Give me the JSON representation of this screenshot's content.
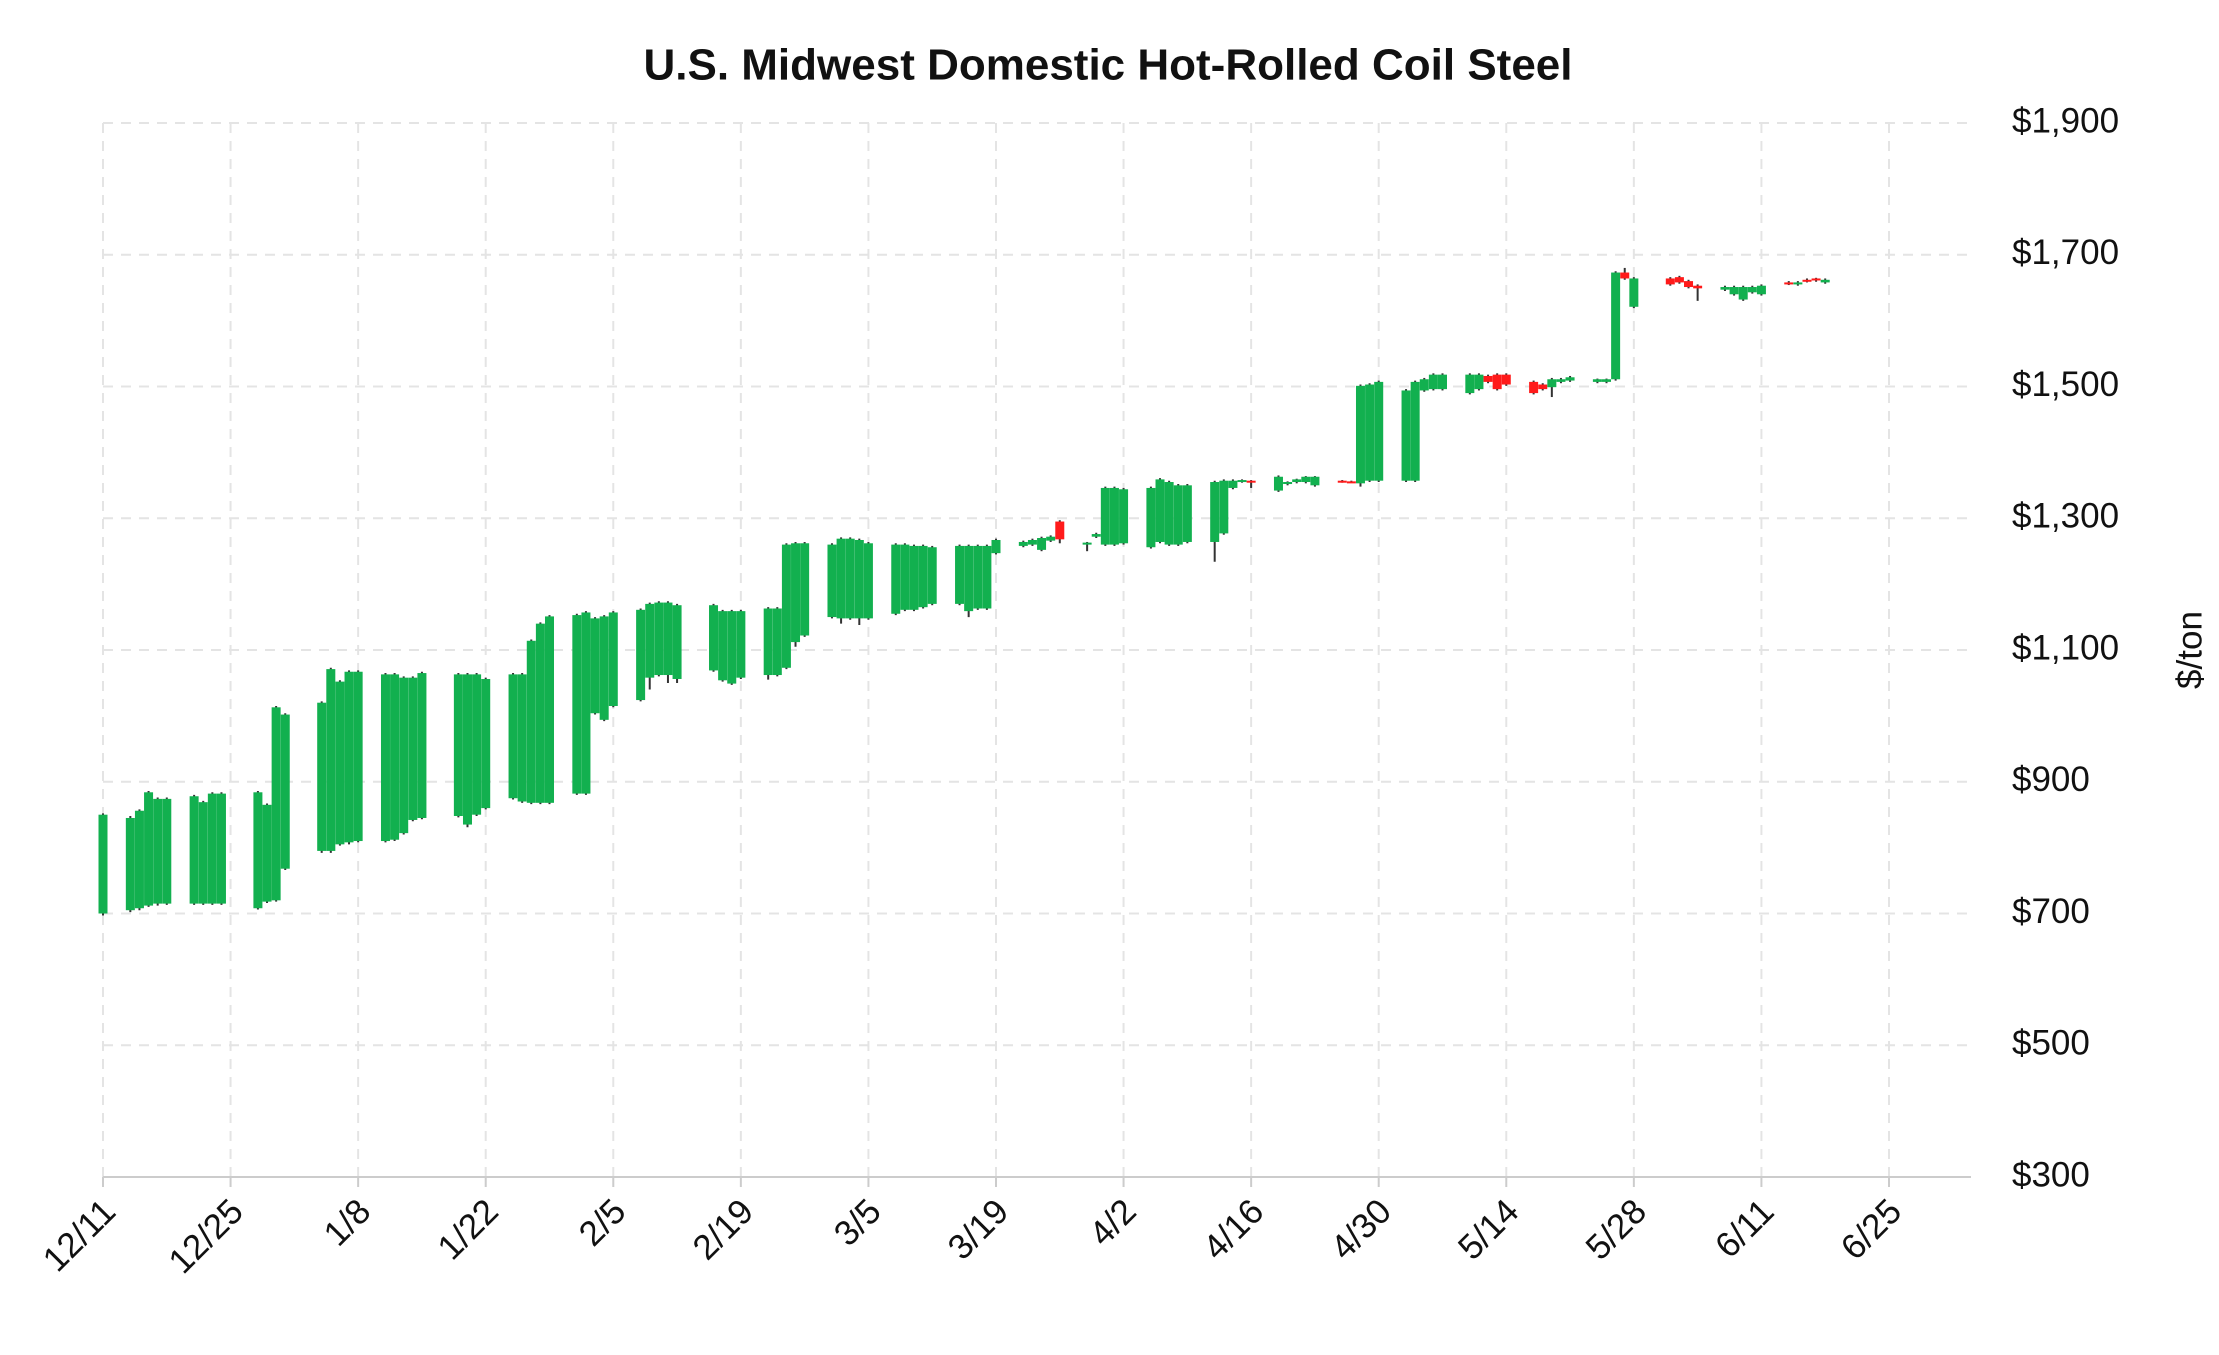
{
  "chart_data": {
    "type": "candlestick",
    "title": "U.S. Midwest Domestic Hot-Rolled Coil Steel",
    "y_label": "$/ton",
    "grid": true,
    "up_color": "#12b04f",
    "down_color": "#ff1a1a",
    "wick_color": "#333333",
    "xlim": [
      "12/11",
      "7/4"
    ],
    "xticks": [
      "12/11",
      "12/25",
      "1/8",
      "1/22",
      "2/5",
      "2/19",
      "3/5",
      "3/19",
      "4/2",
      "4/16",
      "4/30",
      "5/14",
      "5/28",
      "6/11",
      "6/25"
    ],
    "ylim": [
      300,
      1900
    ],
    "yticks": [
      {
        "value": 300,
        "label": "$300"
      },
      {
        "value": 500,
        "label": "$500"
      },
      {
        "value": 700,
        "label": "$700"
      },
      {
        "value": 900,
        "label": "$900"
      },
      {
        "value": 1100,
        "label": "$1,100"
      },
      {
        "value": 1300,
        "label": "$1,300"
      },
      {
        "value": 1500,
        "label": "$1,500"
      },
      {
        "value": 1700,
        "label": "$1,700"
      },
      {
        "value": 1900,
        "label": "$1,900"
      }
    ],
    "x": [
      "12/11",
      "12/14",
      "12/15",
      "12/16",
      "12/17",
      "12/18",
      "12/21",
      "12/22",
      "12/23",
      "12/24",
      "12/28",
      "12/29",
      "12/30",
      "12/31",
      "1/4",
      "1/5",
      "1/6",
      "1/7",
      "1/8",
      "1/11",
      "1/12",
      "1/13",
      "1/14",
      "1/15",
      "1/19",
      "1/20",
      "1/21",
      "1/22",
      "1/25",
      "1/26",
      "1/27",
      "1/28",
      "1/29",
      "2/1",
      "2/2",
      "2/3",
      "2/4",
      "2/5",
      "2/8",
      "2/9",
      "2/10",
      "2/11",
      "2/12",
      "2/16",
      "2/17",
      "2/18",
      "2/19",
      "2/22",
      "2/23",
      "2/24",
      "2/25",
      "2/26",
      "3/1",
      "3/2",
      "3/3",
      "3/4",
      "3/5",
      "3/8",
      "3/9",
      "3/10",
      "3/11",
      "3/12",
      "3/15",
      "3/16",
      "3/17",
      "3/18",
      "3/19",
      "3/22",
      "3/23",
      "3/24",
      "3/25",
      "3/26",
      "3/29",
      "3/30",
      "3/31",
      "4/1",
      "4/2",
      "4/5",
      "4/6",
      "4/7",
      "4/8",
      "4/9",
      "4/12",
      "4/13",
      "4/14",
      "4/15",
      "4/16",
      "4/19",
      "4/20",
      "4/21",
      "4/22",
      "4/23",
      "4/26",
      "4/27",
      "4/28",
      "4/29",
      "4/30",
      "5/3",
      "5/4",
      "5/5",
      "5/6",
      "5/7",
      "5/10",
      "5/11",
      "5/12",
      "5/13",
      "5/14",
      "5/17",
      "5/18",
      "5/19",
      "5/20",
      "5/21",
      "5/24",
      "5/25",
      "5/26",
      "5/27",
      "5/28",
      "6/1",
      "6/2",
      "6/3",
      "6/4",
      "6/7",
      "6/8",
      "6/9",
      "6/10",
      "6/11",
      "6/14",
      "6/15",
      "6/16",
      "6/17",
      "6/18"
    ],
    "open": [
      700,
      705,
      708,
      712,
      715,
      715,
      715,
      715,
      715,
      715,
      708,
      718,
      720,
      768,
      795,
      795,
      805,
      808,
      810,
      810,
      812,
      822,
      842,
      845,
      848,
      835,
      850,
      860,
      875,
      870,
      868,
      868,
      868,
      882,
      882,
      1004,
      994,
      1015,
      1024,
      1058,
      1062,
      1062,
      1056,
      1069,
      1054,
      1049,
      1058,
      1062,
      1062,
      1073,
      1112,
      1122,
      1150,
      1148,
      1148,
      1148,
      1148,
      1155,
      1161,
      1161,
      1165,
      1170,
      1170,
      1159,
      1163,
      1163,
      1247,
      1258,
      1260,
      1252,
      1266,
      1295,
      1262,
      1272,
      1260,
      1260,
      1262,
      1256,
      1264,
      1260,
      1260,
      1264,
      1264,
      1277,
      1346,
      1356,
      1357,
      1342,
      1352,
      1355,
      1355,
      1350,
      1357,
      1356,
      1353,
      1357,
      1357,
      1357,
      1357,
      1494,
      1496,
      1496,
      1490,
      1496,
      1516,
      1518,
      1518,
      1507,
      1503,
      1499,
      1507,
      1509,
      1507,
      1507,
      1511,
      1673,
      1621,
      1664,
      1666,
      1660,
      1653,
      1647,
      1640,
      1632,
      1643,
      1640,
      1658,
      1655,
      1662,
      1664,
      1658
    ],
    "high": [
      852,
      848,
      858,
      886,
      876,
      876,
      880,
      871,
      884,
      884,
      886,
      867,
      1015,
      1004,
      1022,
      1073,
      1054,
      1069,
      1069,
      1065,
      1065,
      1060,
      1060,
      1067,
      1065,
      1065,
      1065,
      1058,
      1065,
      1065,
      1116,
      1142,
      1153,
      1155,
      1159,
      1150,
      1153,
      1159,
      1163,
      1172,
      1174,
      1174,
      1170,
      1170,
      1161,
      1161,
      1161,
      1165,
      1165,
      1262,
      1264,
      1264,
      1262,
      1271,
      1271,
      1269,
      1264,
      1262,
      1262,
      1260,
      1260,
      1258,
      1260,
      1260,
      1260,
      1260,
      1269,
      1266,
      1269,
      1272,
      1274,
      1297,
      1264,
      1278,
      1348,
      1348,
      1346,
      1348,
      1361,
      1357,
      1352,
      1352,
      1357,
      1359,
      1359,
      1359,
      1358,
      1365,
      1356,
      1360,
      1364,
      1364,
      1358,
      1357,
      1503,
      1505,
      1509,
      1496,
      1509,
      1513,
      1520,
      1520,
      1520,
      1520,
      1518,
      1520,
      1520,
      1509,
      1505,
      1513,
      1513,
      1516,
      1512,
      1512,
      1675,
      1680,
      1666,
      1666,
      1668,
      1662,
      1655,
      1653,
      1653,
      1653,
      1653,
      1655,
      1660,
      1660,
      1664,
      1665,
      1664
    ],
    "low": [
      697,
      702,
      705,
      710,
      712,
      713,
      713,
      713,
      713,
      713,
      706,
      716,
      718,
      766,
      792,
      792,
      803,
      805,
      808,
      808,
      810,
      820,
      840,
      843,
      846,
      831,
      848,
      858,
      873,
      868,
      866,
      866,
      866,
      880,
      880,
      1002,
      992,
      1013,
      1022,
      1040,
      1060,
      1050,
      1050,
      1067,
      1052,
      1047,
      1056,
      1055,
      1060,
      1071,
      1105,
      1120,
      1148,
      1140,
      1146,
      1138,
      1146,
      1153,
      1159,
      1159,
      1163,
      1168,
      1168,
      1150,
      1161,
      1161,
      1245,
      1256,
      1258,
      1250,
      1264,
      1262,
      1250,
      1270,
      1258,
      1258,
      1260,
      1254,
      1262,
      1258,
      1258,
      1262,
      1234,
      1275,
      1344,
      1354,
      1346,
      1340,
      1350,
      1353,
      1353,
      1348,
      1354,
      1354,
      1348,
      1355,
      1355,
      1355,
      1355,
      1492,
      1494,
      1494,
      1488,
      1494,
      1505,
      1494,
      1501,
      1488,
      1494,
      1484,
      1505,
      1507,
      1505,
      1505,
      1509,
      1662,
      1619,
      1653,
      1656,
      1649,
      1630,
      1645,
      1638,
      1630,
      1641,
      1638,
      1654,
      1653,
      1658,
      1659,
      1656
    ],
    "close": [
      850,
      845,
      856,
      884,
      874,
      874,
      878,
      869,
      882,
      882,
      884,
      865,
      1013,
      1002,
      1020,
      1071,
      1052,
      1067,
      1067,
      1063,
      1063,
      1058,
      1058,
      1065,
      1063,
      1063,
      1063,
      1056,
      1063,
      1063,
      1114,
      1140,
      1151,
      1153,
      1157,
      1148,
      1151,
      1157,
      1161,
      1170,
      1172,
      1172,
      1168,
      1168,
      1159,
      1159,
      1159,
      1163,
      1163,
      1260,
      1262,
      1262,
      1260,
      1269,
      1269,
      1267,
      1262,
      1260,
      1260,
      1258,
      1258,
      1256,
      1258,
      1258,
      1258,
      1258,
      1267,
      1264,
      1267,
      1270,
      1272,
      1268,
      1263,
      1276,
      1346,
      1346,
      1344,
      1346,
      1359,
      1355,
      1350,
      1350,
      1355,
      1357,
      1357,
      1358,
      1355,
      1363,
      1355,
      1359,
      1363,
      1363,
      1355,
      1355,
      1501,
      1503,
      1507,
      1494,
      1507,
      1511,
      1518,
      1518,
      1518,
      1518,
      1507,
      1496,
      1503,
      1490,
      1496,
      1511,
      1511,
      1514,
      1511,
      1511,
      1673,
      1664,
      1664,
      1655,
      1658,
      1651,
      1649,
      1651,
      1651,
      1651,
      1651,
      1653,
      1655,
      1658,
      1660,
      1662,
      1662
    ]
  }
}
